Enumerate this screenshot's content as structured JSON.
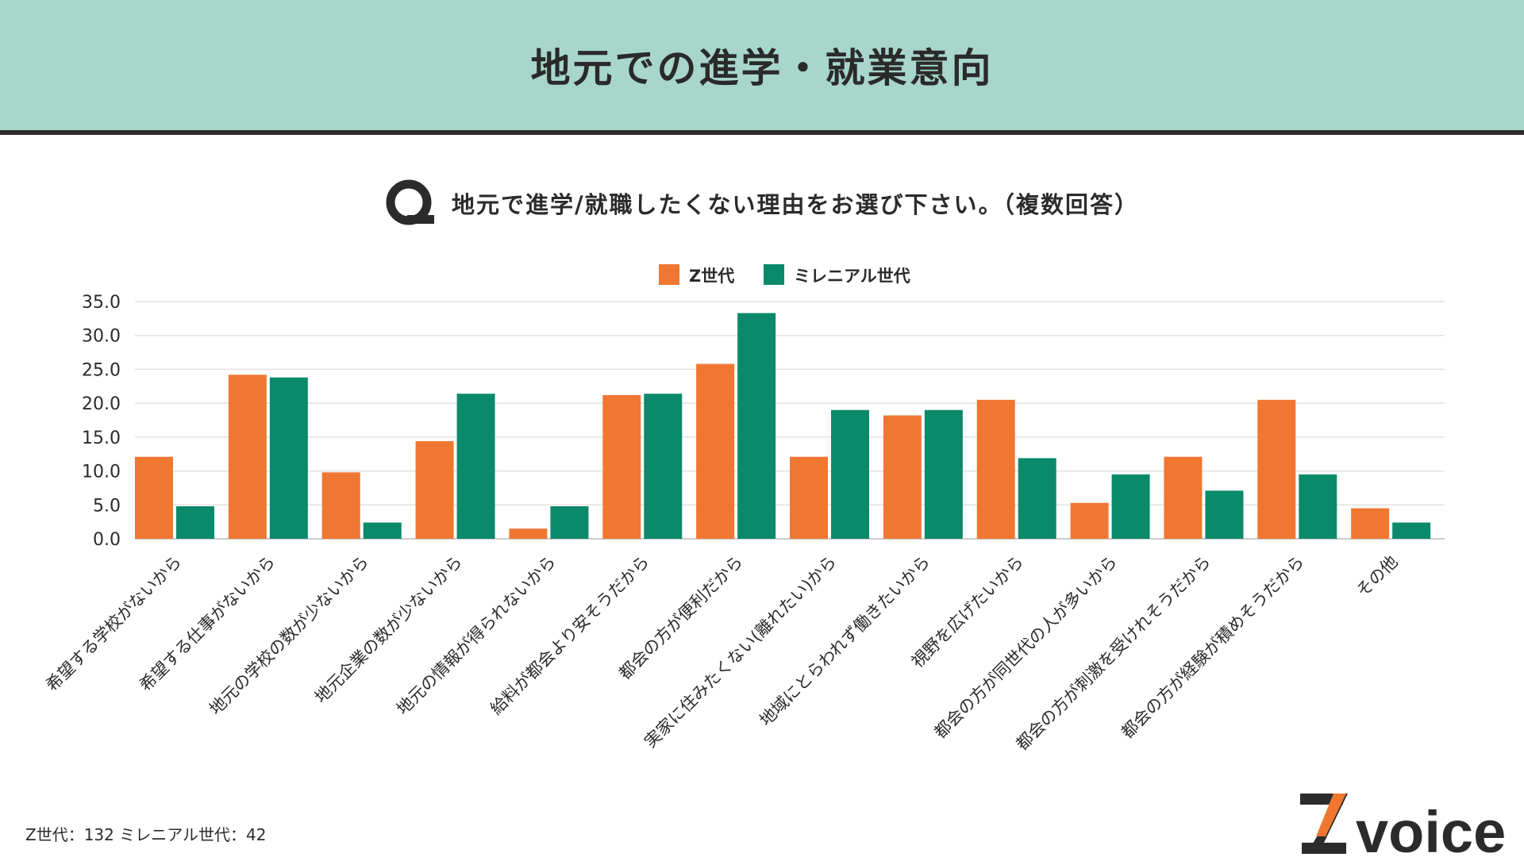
{
  "header": {
    "title": "地元での進学・就業意向"
  },
  "question": {
    "text": "地元で進学/就職したくない理由をお選び下さい。（複数回答）"
  },
  "chart_data": {
    "type": "bar",
    "categories": [
      "希望する学校がないから",
      "希望する仕事がないから",
      "地元の学校の数が少ないから",
      "地元企業の数が少ないから",
      "地元の情報が得られないから",
      "給料が都会より安そうだから",
      "都会の方が便利だから",
      "実家に住みたくない(離れたい)から",
      "地域にとらわれず働きたいから",
      "視野を広げたいから",
      "都会の方が同世代の人が多いから",
      "都会の方が刺激を受けれそうだから",
      "都会の方が経験が積めそうだから",
      "その他"
    ],
    "series": [
      {
        "name": "Z世代",
        "color": "#f07732",
        "values": [
          12.1,
          24.2,
          9.8,
          14.4,
          1.5,
          21.2,
          25.8,
          12.1,
          18.2,
          20.5,
          5.3,
          12.1,
          20.5,
          4.5
        ]
      },
      {
        "name": "ミレニアル世代",
        "color": "#0a8a6b",
        "values": [
          4.8,
          23.8,
          2.4,
          21.4,
          4.8,
          21.4,
          33.3,
          19.0,
          19.0,
          11.9,
          9.5,
          7.1,
          9.5,
          2.4
        ]
      }
    ],
    "ylim": [
      0,
      35
    ],
    "yticks": [
      "35.0",
      "30.0",
      "25.0",
      "20.0",
      "15.0",
      "10.0",
      "5.0",
      "0.0"
    ],
    "grid": true,
    "legend": "top-center"
  },
  "footer": {
    "sample_note": "Z世代：132  ミレニアル世代：42"
  },
  "brand": {
    "logo_text": "voice",
    "logo_letter": "Z"
  },
  "colors": {
    "header_bg": "#a8d6cb",
    "z_gen": "#f07732",
    "millennial": "#0a8a6b"
  }
}
